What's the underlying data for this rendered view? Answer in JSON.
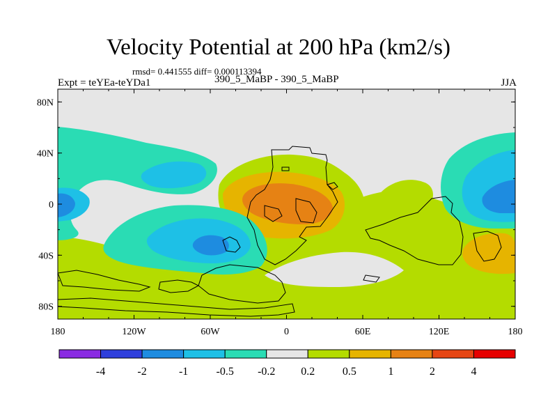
{
  "chart_data": {
    "type": "heatmap",
    "title": "Velocity Potential at 200 hPa (km2/s)",
    "stats": "rmsd= 0.441555 diff= 0.000113394",
    "left_label": "Expt = teYEa-teYDa1",
    "center_label": "390_5_MaBP - 390_5_MaBP",
    "right_label": "JJA",
    "x_ticks": [
      "180",
      "120W",
      "60W",
      "0",
      "60E",
      "120E",
      "180"
    ],
    "y_ticks": [
      "80N",
      "40N",
      "0",
      "40S",
      "80S"
    ],
    "x_range": [
      -180,
      180
    ],
    "y_range": [
      -90,
      90
    ],
    "colorbar_levels": [
      "-4",
      "-2",
      "-1",
      "-0.5",
      "-0.2",
      "0.2",
      "0.5",
      "1",
      "2",
      "4"
    ],
    "colorbar_colors": [
      "#8a2be2",
      "#2f3fdc",
      "#1e8ce0",
      "#1ec0e6",
      "#2adcb4",
      "#e6e6e6",
      "#b4dc00",
      "#e6b400",
      "#e68214",
      "#e64614",
      "#e60000"
    ]
  }
}
